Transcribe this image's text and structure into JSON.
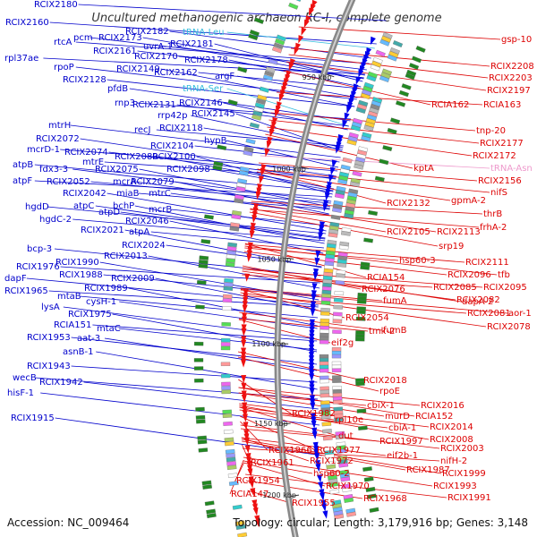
{
  "title": "Uncultured methanogenic archaeon RC-I, complete genome",
  "footer": {
    "accession": "Accession: NC_009464",
    "summary": "Topology: circular; Length: 3,179,916 bp; Genes: 3,148"
  },
  "colors": {
    "forward_label": "#0000cc",
    "reverse_label": "#dd0000",
    "trna_forward": "#33bbdd",
    "trna_reverse": "#ee99cc",
    "backbone": "#888888"
  },
  "ticks": [
    "950 kbp",
    "1000 kbp",
    "1050 kbp",
    "1100 kbp",
    "1150 kbp",
    "1200 kbp"
  ],
  "forward_labels": [
    "RCIX2180",
    "RCIX2160",
    "RCIX2182",
    "pcm",
    "RCIX2173",
    "tRNA-Leu",
    "rtcA",
    "RCIX2161",
    "uvrA-1",
    "RCIX2181",
    "rpl37ae",
    "RCIX2170",
    "RCIX2178",
    "rpoP",
    "RCIX2149",
    "RCIX2162",
    "argF",
    "RCIX2128",
    "pfdB",
    "tRNA-Ser",
    "rnp3",
    "RCIX2131",
    "RCIX2146",
    "rrp42p",
    "RCIX2145",
    "recJ",
    "RCIX2118",
    "hypB",
    "mtrH",
    "RCIX2072",
    "RCIX2104",
    "mcrD-1",
    "RCIX2074",
    "RCIX2080",
    "RCIX2100",
    "mtrE",
    "RCIX2098",
    "atpB",
    "fdx3-3",
    "RCIX2075",
    "atpF",
    "RCIX2052",
    "mcrA",
    "RCIX2079",
    "RCIX2042",
    "miaB",
    "mtrC",
    "hgdD",
    "atpC",
    "bchP",
    "mcrB",
    "hgdC-2",
    "atpD",
    "RCIX2046",
    "RCIX2021",
    "atpA",
    "RCIX2024",
    "bcp-3",
    "RCIX2013",
    "RCIX1990",
    "RCIX1976",
    "RCIX1988",
    "dapF",
    "RCIX2009",
    "RCIX1989",
    "RCIX1965",
    "mtaB",
    "cysH-1",
    "lysA",
    "RCIX1975",
    "RCIA151",
    "mtaC",
    "RCIX1953",
    "aat-3",
    "asnB-1",
    "RCIX1943",
    "wecB",
    "RCIX1942",
    "hisF-1",
    "RCIX1915"
  ],
  "reverse_labels": [
    "gsp-10",
    "RCIX2208",
    "RCIX2203",
    "RCIX2197",
    "RCIA162",
    "RCIA163",
    "tnp-20",
    "RCIX2177",
    "RCIX2172",
    "kptA",
    "tRNA-Asn",
    "RCIX2156",
    "nifS",
    "gpmA-2",
    "RCIX2132",
    "thrB",
    "frhA-2",
    "RCIX2105",
    "RCIX2113",
    "srp19",
    "hsp60-3",
    "RCIX2111",
    "RCIX2096",
    "tfb",
    "RCIA154",
    "RCIX2085",
    "RCIX2095",
    "RCIX2076",
    "RCIX2082",
    "dapA-2",
    "fumA",
    "RCIX2081",
    "aor-1",
    "RCIX2054",
    "RCIX2078",
    "tmk-2",
    "fumB",
    "eif2g",
    "RCIX2018",
    "rpoE",
    "cbiX-1",
    "RCIX2016",
    "murD",
    "RCIA152",
    "RCIX1982",
    "rpl10e",
    "cbiA-1",
    "RCIX2014",
    "dut",
    "RCIX2008",
    "RCIX1997",
    "eif2b-1",
    "RCIX2003",
    "RCIX1966",
    "RCIX1977",
    "nifH-2",
    "RCIX1961",
    "RCIX1972",
    "RCIX1987",
    "RCIX1999",
    "hsp60-2",
    "RCIX1954",
    "RCIX1970",
    "RCIX1993",
    "RCIA147",
    "RCIX1955",
    "RCIX1968",
    "RCIX1991"
  ]
}
